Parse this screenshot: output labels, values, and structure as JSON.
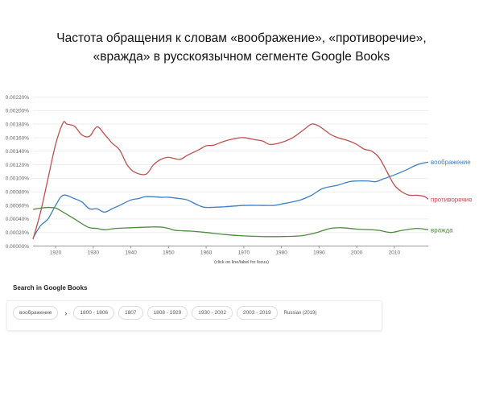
{
  "title_lines": [
    "Частота обращения к словам «воображение», «противоречие»,",
    "«вражда» в русскоязычном сегменте Google Books"
  ],
  "chart_data": {
    "type": "line",
    "title": "Частота обращения к словам «воображение», «противоречие», «вражда» в русскоязычном сегменте Google Books",
    "xlim": [
      1914,
      2019
    ],
    "ylim": [
      0,
      0.0022
    ],
    "y_ticks": [
      "0.00000%",
      "0.00020%",
      "0.00040%",
      "0.00060%",
      "0.00080%",
      "0.00100%",
      "0.00120%",
      "0.00140%",
      "0.00160%",
      "0.00180%",
      "0.00200%",
      "0.00220%"
    ],
    "x_ticks": [
      "1920",
      "1930",
      "1940",
      "1950",
      "1960",
      "1970",
      "1980",
      "1990",
      "2000",
      "2010"
    ],
    "grid": true,
    "legend": "right-end labels",
    "series": [
      {
        "name": "воображение",
        "color": "#3d7ec4",
        "points": [
          [
            1914,
            0.00012
          ],
          [
            1916,
            0.0003
          ],
          [
            1918,
            0.0004
          ],
          [
            1920,
            0.0006
          ],
          [
            1922,
            0.00075
          ],
          [
            1925,
            0.0007
          ],
          [
            1927,
            0.00065
          ],
          [
            1929,
            0.00055
          ],
          [
            1931,
            0.00055
          ],
          [
            1933,
            0.0005
          ],
          [
            1935,
            0.00055
          ],
          [
            1937,
            0.0006
          ],
          [
            1940,
            0.00068
          ],
          [
            1942,
            0.0007
          ],
          [
            1944,
            0.00073
          ],
          [
            1948,
            0.00072
          ],
          [
            1950,
            0.00072
          ],
          [
            1953,
            0.0007
          ],
          [
            1955,
            0.00068
          ],
          [
            1958,
            0.0006
          ],
          [
            1960,
            0.00057
          ],
          [
            1965,
            0.00058
          ],
          [
            1970,
            0.0006
          ],
          [
            1975,
            0.0006
          ],
          [
            1978,
            0.0006
          ],
          [
            1980,
            0.00062
          ],
          [
            1985,
            0.00068
          ],
          [
            1988,
            0.00075
          ],
          [
            1991,
            0.00085
          ],
          [
            1995,
            0.0009
          ],
          [
            1998,
            0.00095
          ],
          [
            2000,
            0.00096
          ],
          [
            2003,
            0.00096
          ],
          [
            2005,
            0.00095
          ],
          [
            2007,
            0.00099
          ],
          [
            2010,
            0.00105
          ],
          [
            2013,
            0.00112
          ],
          [
            2016,
            0.0012
          ],
          [
            2019,
            0.00124
          ]
        ]
      },
      {
        "name": "противоречие",
        "color": "#c0504d",
        "points": [
          [
            1914,
            0.0001
          ],
          [
            1916,
            0.0005
          ],
          [
            1918,
            0.001
          ],
          [
            1920,
            0.0015
          ],
          [
            1922,
            0.00182
          ],
          [
            1923,
            0.0018
          ],
          [
            1925,
            0.00177
          ],
          [
            1927,
            0.00164
          ],
          [
            1929,
            0.00162
          ],
          [
            1931,
            0.00176
          ],
          [
            1933,
            0.00165
          ],
          [
            1935,
            0.00152
          ],
          [
            1937,
            0.00142
          ],
          [
            1939,
            0.0012
          ],
          [
            1941,
            0.00109
          ],
          [
            1944,
            0.00106
          ],
          [
            1946,
            0.0012
          ],
          [
            1948,
            0.00128
          ],
          [
            1950,
            0.00131
          ],
          [
            1953,
            0.00128
          ],
          [
            1955,
            0.00134
          ],
          [
            1958,
            0.00142
          ],
          [
            1960,
            0.00148
          ],
          [
            1962,
            0.00149
          ],
          [
            1965,
            0.00155
          ],
          [
            1968,
            0.00159
          ],
          [
            1970,
            0.0016
          ],
          [
            1973,
            0.00157
          ],
          [
            1975,
            0.00155
          ],
          [
            1977,
            0.0015
          ],
          [
            1980,
            0.00153
          ],
          [
            1983,
            0.0016
          ],
          [
            1986,
            0.00172
          ],
          [
            1988,
            0.0018
          ],
          [
            1990,
            0.00177
          ],
          [
            1993,
            0.00165
          ],
          [
            1995,
            0.0016
          ],
          [
            1998,
            0.00155
          ],
          [
            2000,
            0.0015
          ],
          [
            2002,
            0.00143
          ],
          [
            2004,
            0.0014
          ],
          [
            2006,
            0.0013
          ],
          [
            2008,
            0.0011
          ],
          [
            2010,
            0.0009
          ],
          [
            2012,
            0.0008
          ],
          [
            2014,
            0.00075
          ],
          [
            2016,
            0.00075
          ],
          [
            2018,
            0.00073
          ],
          [
            2019,
            0.00069
          ]
        ]
      },
      {
        "name": "вражда",
        "color": "#4e8a3e",
        "points": [
          [
            1914,
            0.00054
          ],
          [
            1916,
            0.00056
          ],
          [
            1918,
            0.00057
          ],
          [
            1920,
            0.00056
          ],
          [
            1922,
            0.0005
          ],
          [
            1925,
            0.0004
          ],
          [
            1927,
            0.00033
          ],
          [
            1929,
            0.00027
          ],
          [
            1931,
            0.00026
          ],
          [
            1933,
            0.00024
          ],
          [
            1936,
            0.00026
          ],
          [
            1940,
            0.00027
          ],
          [
            1945,
            0.00028
          ],
          [
            1948,
            0.00028
          ],
          [
            1950,
            0.00026
          ],
          [
            1952,
            0.00023
          ],
          [
            1956,
            0.00022
          ],
          [
            1960,
            0.0002
          ],
          [
            1965,
            0.00017
          ],
          [
            1970,
            0.00015
          ],
          [
            1975,
            0.00014
          ],
          [
            1980,
            0.00014
          ],
          [
            1985,
            0.00015
          ],
          [
            1988,
            0.00018
          ],
          [
            1990,
            0.00021
          ],
          [
            1993,
            0.00026
          ],
          [
            1996,
            0.00027
          ],
          [
            2000,
            0.00025
          ],
          [
            2004,
            0.00024
          ],
          [
            2006,
            0.00023
          ],
          [
            2009,
            0.0002
          ],
          [
            2012,
            0.00023
          ],
          [
            2016,
            0.00026
          ],
          [
            2019,
            0.00024
          ]
        ]
      }
    ]
  },
  "hint": "(click on line/label for focus)",
  "search": {
    "heading": "Search in Google Books",
    "term": "воображение",
    "ranges": [
      "1800 - 1806",
      "1807",
      "1808 - 1929",
      "1930 - 2002",
      "2003 - 2019"
    ],
    "corpus": "Russian (2019)"
  }
}
